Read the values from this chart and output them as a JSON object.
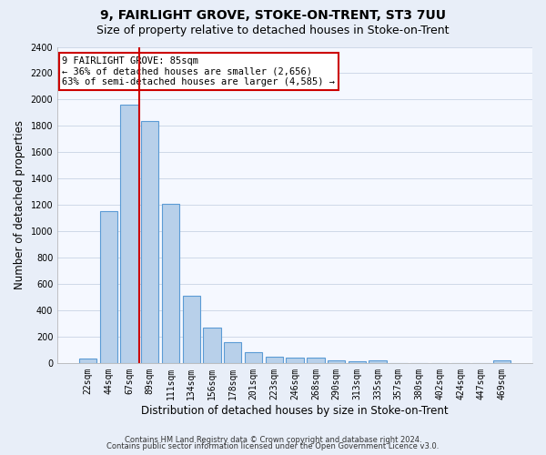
{
  "title": "9, FAIRLIGHT GROVE, STOKE-ON-TRENT, ST3 7UU",
  "subtitle": "Size of property relative to detached houses in Stoke-on-Trent",
  "xlabel": "Distribution of detached houses by size in Stoke-on-Trent",
  "ylabel": "Number of detached properties",
  "categories": [
    "22sqm",
    "44sqm",
    "67sqm",
    "89sqm",
    "111sqm",
    "134sqm",
    "156sqm",
    "178sqm",
    "201sqm",
    "223sqm",
    "246sqm",
    "268sqm",
    "290sqm",
    "313sqm",
    "335sqm",
    "357sqm",
    "380sqm",
    "402sqm",
    "424sqm",
    "447sqm",
    "469sqm"
  ],
  "values": [
    30,
    1150,
    1960,
    1840,
    1210,
    510,
    265,
    155,
    80,
    50,
    40,
    40,
    20,
    15,
    20,
    0,
    0,
    0,
    0,
    0,
    20
  ],
  "bar_color": "#b8d0ea",
  "bar_edge_color": "#5b9bd5",
  "vline_color": "#cc0000",
  "vline_pos": 2.5,
  "annotation_text": "9 FAIRLIGHT GROVE: 85sqm\n← 36% of detached houses are smaller (2,656)\n63% of semi-detached houses are larger (4,585) →",
  "annotation_box_color": "#ffffff",
  "annotation_box_edge": "#cc0000",
  "ylim": [
    0,
    2400
  ],
  "yticks": [
    0,
    200,
    400,
    600,
    800,
    1000,
    1200,
    1400,
    1600,
    1800,
    2000,
    2200,
    2400
  ],
  "footer1": "Contains HM Land Registry data © Crown copyright and database right 2024.",
  "footer2": "Contains public sector information licensed under the Open Government Licence v3.0.",
  "bg_color": "#e8eef8",
  "plot_bg_color": "#f5f8ff",
  "grid_color": "#c8d4e4",
  "title_fontsize": 10,
  "subtitle_fontsize": 9,
  "tick_fontsize": 7,
  "label_fontsize": 8.5,
  "footer_fontsize": 6,
  "annotation_fontsize": 7.5
}
